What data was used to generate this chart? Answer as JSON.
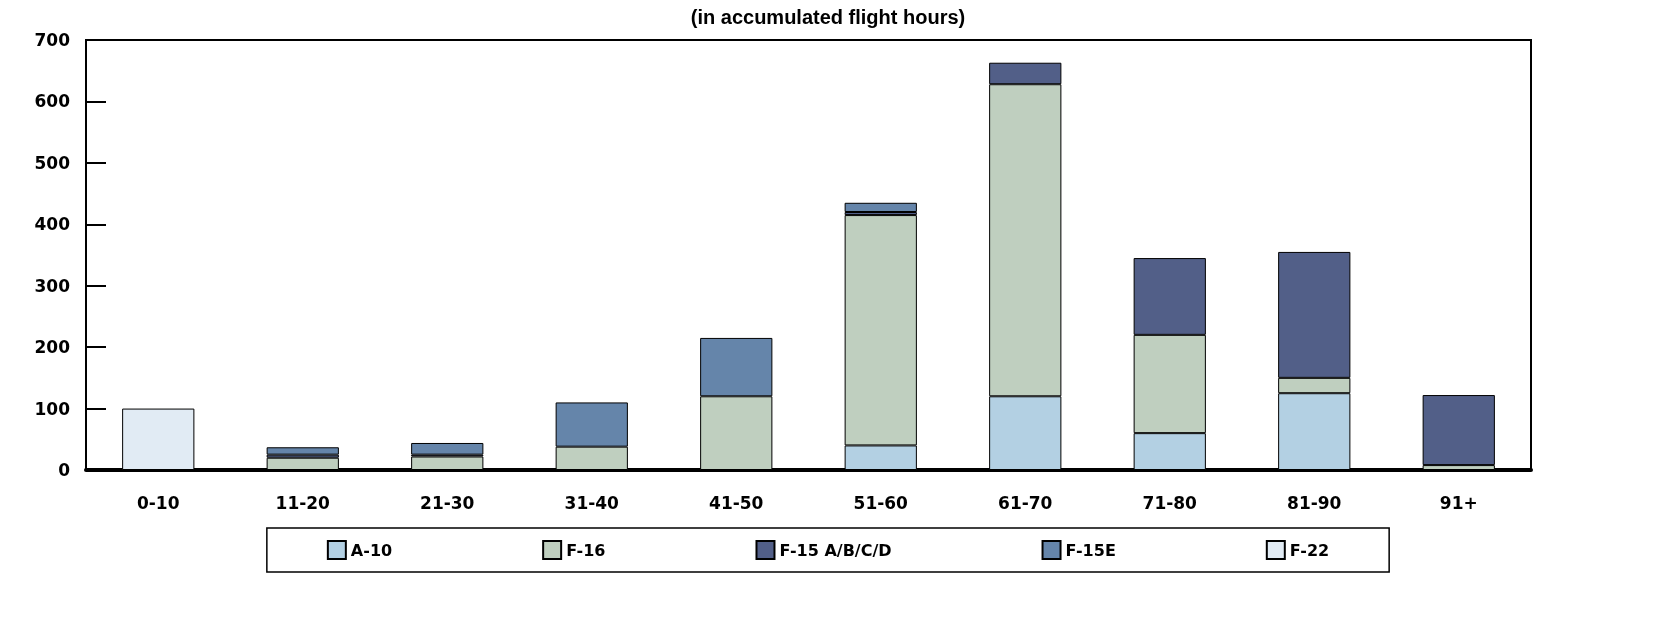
{
  "chart_data": {
    "type": "bar",
    "stacked": true,
    "title": "(in accumulated flight hours)",
    "categories": [
      "0-10",
      "11-20",
      "21-30",
      "31-40",
      "41-50",
      "51-60",
      "61-70",
      "71-80",
      "81-90",
      "91+"
    ],
    "series": [
      {
        "name": "A-10",
        "color": "#b3d0e3",
        "values": [
          null,
          null,
          null,
          null,
          null,
          40,
          120,
          60,
          125,
          null
        ]
      },
      {
        "name": "F-16",
        "color": "#bfcfbf",
        "values": [
          null,
          20,
          22,
          38,
          120,
          375,
          508,
          160,
          25,
          8
        ]
      },
      {
        "name": "F-15 A/B/C/D",
        "color": "#525f88",
        "values": [
          null,
          5,
          3,
          null,
          null,
          5,
          35,
          125,
          205,
          114
        ]
      },
      {
        "name": "F-15E",
        "color": "#6585aa",
        "values": [
          null,
          12,
          19,
          72,
          95,
          15,
          null,
          null,
          null,
          null
        ]
      },
      {
        "name": "F-22",
        "color": "#e1ebf4",
        "values": [
          100,
          null,
          null,
          null,
          null,
          null,
          null,
          null,
          null,
          null
        ]
      }
    ],
    "ylim": [
      0,
      700
    ],
    "yticks": [
      0,
      100,
      200,
      300,
      400,
      500,
      600,
      700
    ],
    "grid": false,
    "legend": "bottom"
  }
}
